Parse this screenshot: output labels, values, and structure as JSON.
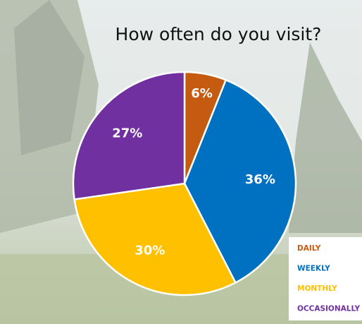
{
  "chart_data": {
    "type": "pie",
    "title": "How often do you visit?",
    "categories": [
      "DAILY",
      "WEEKLY",
      "MONTHLY",
      "OCCASIONALLY"
    ],
    "values": [
      6,
      36,
      30,
      27
    ],
    "value_labels": [
      "6%",
      "36%",
      "30%",
      "27%"
    ],
    "colors": [
      "#c55a11",
      "#0070c0",
      "#ffc000",
      "#7030a0"
    ],
    "legend": "bottom-right"
  }
}
